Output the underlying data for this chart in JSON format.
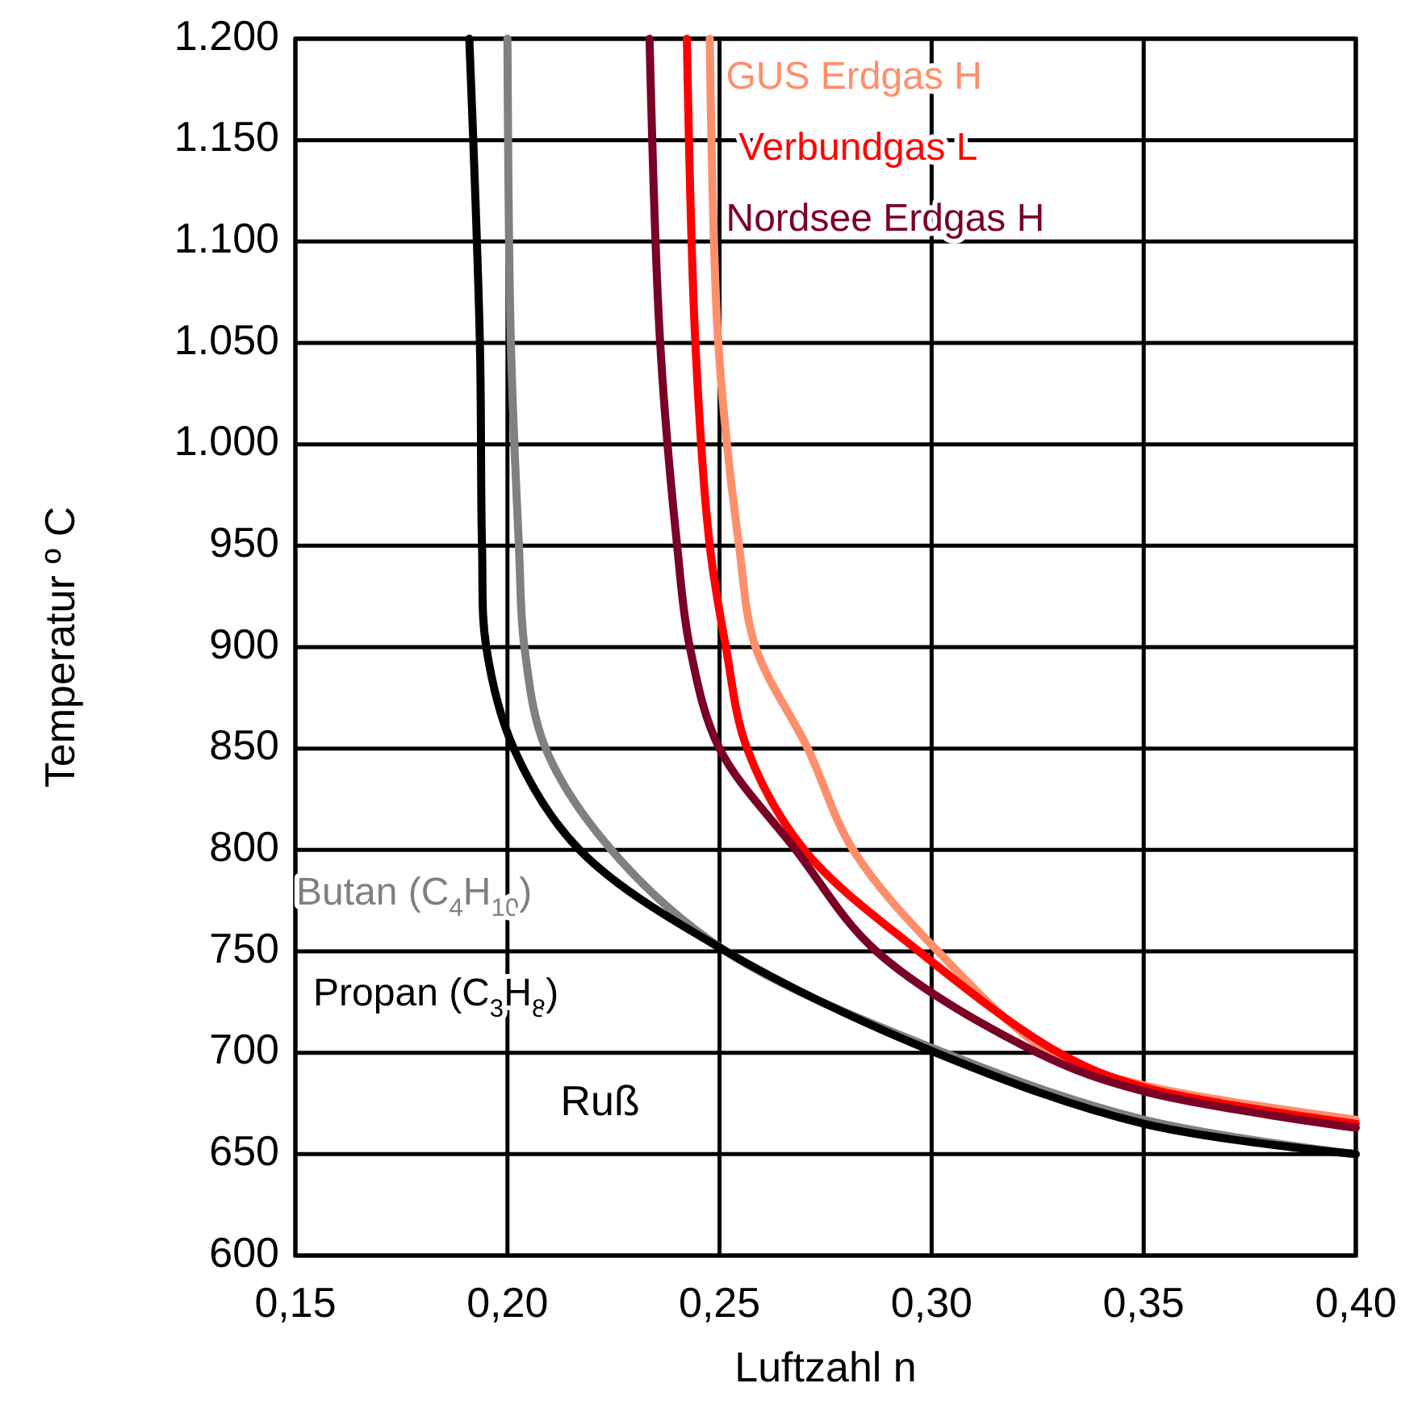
{
  "chart_data": {
    "type": "line",
    "xlabel": "Luftzahl n",
    "ylabel": "Temperatur º C",
    "xlim": [
      0.15,
      0.4
    ],
    "xticks": [
      {
        "value": 0.15,
        "label": "0,15"
      },
      {
        "value": 0.2,
        "label": "0,20"
      },
      {
        "value": 0.25,
        "label": "0,25"
      },
      {
        "value": 0.3,
        "label": "0,30"
      },
      {
        "value": 0.35,
        "label": "0,35"
      },
      {
        "value": 0.4,
        "label": "0,40"
      }
    ],
    "ylim": [
      600,
      1200
    ],
    "yticks": [
      600,
      650,
      700,
      750,
      800,
      850,
      900,
      950,
      {
        "value": 1000,
        "label": "1.000"
      },
      {
        "value": 1050,
        "label": "1.050"
      },
      {
        "value": 1100,
        "label": "1.100"
      },
      {
        "value": 1150,
        "label": "1.150"
      },
      {
        "value": 1200,
        "label": "1.200"
      }
    ],
    "grid": true,
    "legend": false,
    "marker": "none",
    "line_style": "solid",
    "series": [
      {
        "name": "GUS Erdgas H",
        "color": "#ff8f6b",
        "x": [
          0.2477,
          0.2497,
          0.2546,
          0.2585,
          0.2708,
          0.2815,
          0.3015,
          0.328,
          0.35,
          0.4
        ],
        "values": [
          1200,
          1050,
          950,
          900,
          850,
          800,
          750,
          700,
          684,
          667
        ]
      },
      {
        "name": "Verbundgas L",
        "color": "#ff0000",
        "x": [
          0.2423,
          0.2443,
          0.2477,
          0.2515,
          0.2565,
          0.27,
          0.297,
          0.33,
          0.35,
          0.4
        ],
        "values": [
          1200,
          1050,
          950,
          900,
          850,
          800,
          750,
          700,
          683,
          665
        ]
      },
      {
        "name": "Nordsee Erdgas H",
        "color": "#7a0026",
        "x": [
          0.2335,
          0.236,
          0.24,
          0.243,
          0.25,
          0.268,
          0.287,
          0.325,
          0.35,
          0.4
        ],
        "values": [
          1200,
          1050,
          950,
          900,
          850,
          800,
          750,
          700,
          681,
          663
        ]
      },
      {
        "name": "Butan (C$_{4}$H$_{10}$)",
        "color": "#808080",
        "x": [
          0.2,
          0.2008,
          0.2027,
          0.204,
          0.209,
          0.2245,
          0.2515,
          0.303,
          0.35,
          0.4
        ],
        "values": [
          1200,
          1050,
          950,
          900,
          850,
          800,
          750,
          700,
          667,
          650
        ]
      },
      {
        "name": "Propan (C$_{3}$H$_{8}$)",
        "color": "#000000",
        "x": [
          0.191,
          0.1935,
          0.194,
          0.195,
          0.2015,
          0.217,
          0.2515,
          0.301,
          0.35,
          0.4
        ],
        "values": [
          1200,
          1050,
          950,
          900,
          850,
          800,
          750,
          700,
          665,
          650
        ]
      }
    ],
    "annotations": [
      "Ruß"
    ]
  }
}
